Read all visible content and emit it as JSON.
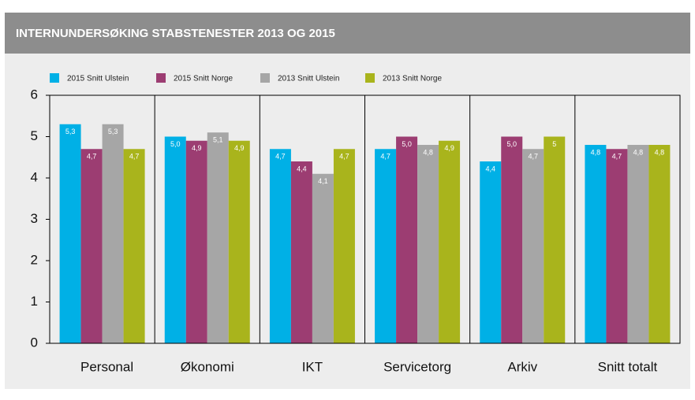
{
  "chart_data": {
    "type": "bar",
    "title": "INTERNUNDERSØKING STABSTENESTER 2013 OG 2015",
    "categories": [
      "Personal",
      "Økonomi",
      "IKT",
      "Servicetorg",
      "Arkiv",
      "Snitt totalt"
    ],
    "series": [
      {
        "name": "2015 Snitt Ulstein",
        "color": "#00b0e6",
        "values": [
          5.3,
          5.0,
          4.7,
          4.7,
          4.4,
          4.8
        ],
        "value_labels": [
          "5,3",
          "5,0",
          "4,7",
          "4,7",
          "4,4",
          "4,8"
        ]
      },
      {
        "name": "2015 Snitt Norge",
        "color": "#9c3d72",
        "values": [
          4.7,
          4.9,
          4.4,
          5.0,
          5.0,
          4.7
        ],
        "value_labels": [
          "4,7",
          "4,9",
          "4,4",
          "5,0",
          "5,0",
          "4,7"
        ]
      },
      {
        "name": "2013 Snitt Ulstein",
        "color": "#a6a6a6",
        "values": [
          5.3,
          5.1,
          4.1,
          4.8,
          4.7,
          4.8
        ],
        "value_labels": [
          "5,3",
          "5,1",
          "4,1",
          "4,8",
          "4,7",
          "4,8"
        ]
      },
      {
        "name": "2013 Snitt Norge",
        "color": "#a9b41c",
        "values": [
          4.7,
          4.9,
          4.7,
          4.9,
          5,
          4.8
        ],
        "value_labels": [
          "4,7",
          "4,9",
          "4,7",
          "4,9",
          "5",
          "4,8"
        ]
      }
    ],
    "ylim": [
      0,
      6
    ],
    "yticks": [
      0,
      1,
      2,
      3,
      4,
      5,
      6
    ],
    "grid": false
  }
}
